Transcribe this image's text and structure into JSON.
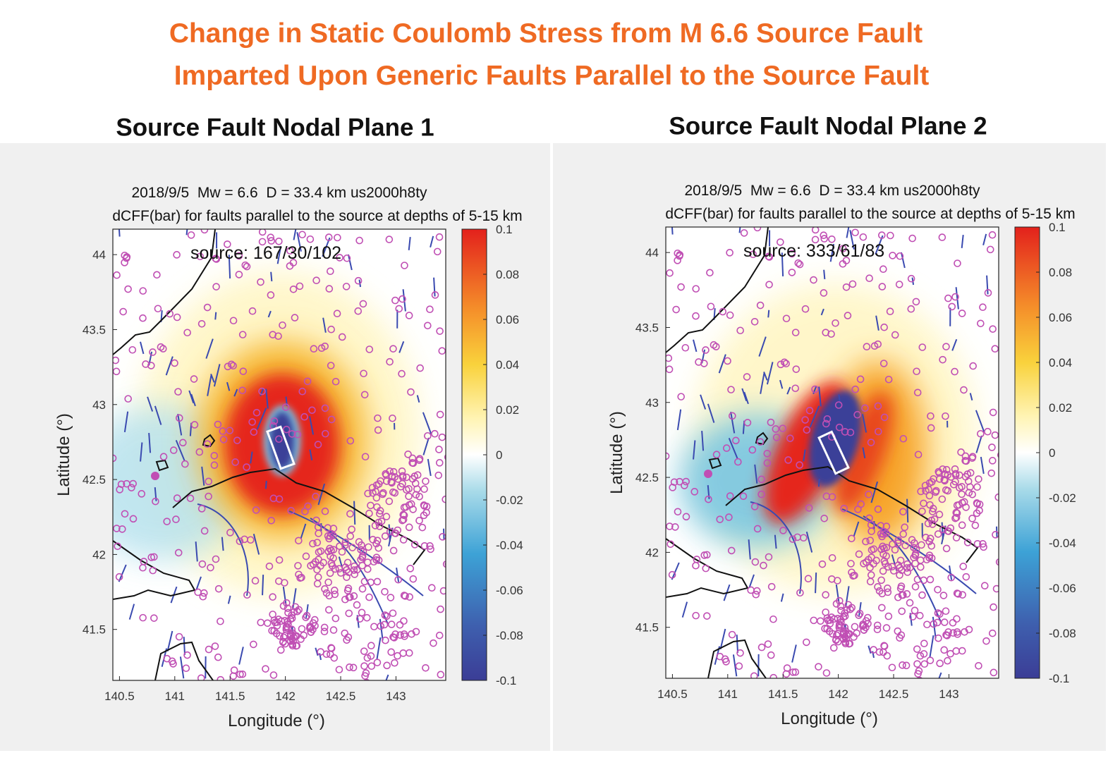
{
  "title": [
    "Change in Static Coulomb Stress from M 6.6 Source Fault",
    "Imparted Upon Generic Faults Parallel to the Source Fault"
  ],
  "panels": [
    {
      "header": "Source Fault Nodal Plane 1",
      "plot_title": [
        "2018/9/5  Mw = 6.6  D = 33.4 km us2000h8ty",
        "dCFF(bar) for faults parallel to the source at depths of 5-15 km"
      ],
      "source_label": "source: 167/30/102",
      "xlabel": "Longitude (°)",
      "ylabel": "Latitude (°)",
      "xlim": [
        140.44,
        143.45
      ],
      "ylim": [
        41.16,
        44.17
      ],
      "xticks": [
        140.5,
        141,
        141.5,
        142,
        142.5,
        143
      ],
      "yticks": [
        41.5,
        42,
        42.5,
        43,
        43.5,
        44
      ],
      "clim": [
        -0.1,
        0.1
      ],
      "cticks": [
        -0.1,
        -0.08,
        -0.06,
        -0.04,
        -0.02,
        0,
        0.02,
        0.04,
        0.06,
        0.08,
        0.1
      ]
    },
    {
      "header": "Source Fault Nodal Plane 2",
      "plot_title": [
        "2018/9/5  Mw = 6.6  D = 33.4 km us2000h8ty",
        "dCFF(bar) for faults parallel to the source at depths of 5-15 km"
      ],
      "source_label": "source: 333/61/83",
      "xlabel": "Longitude (°)",
      "ylabel": "Latitude (°)",
      "xlim": [
        140.44,
        143.45
      ],
      "ylim": [
        41.16,
        44.17
      ],
      "xticks": [
        140.5,
        141,
        141.5,
        142,
        142.5,
        143
      ],
      "yticks": [
        41.5,
        42,
        42.5,
        43,
        43.5,
        44
      ],
      "clim": [
        -0.1,
        0.1
      ],
      "cticks": [
        -0.1,
        -0.08,
        -0.06,
        -0.04,
        -0.02,
        0,
        0.02,
        0.04,
        0.06,
        0.08,
        0.1
      ]
    }
  ]
}
